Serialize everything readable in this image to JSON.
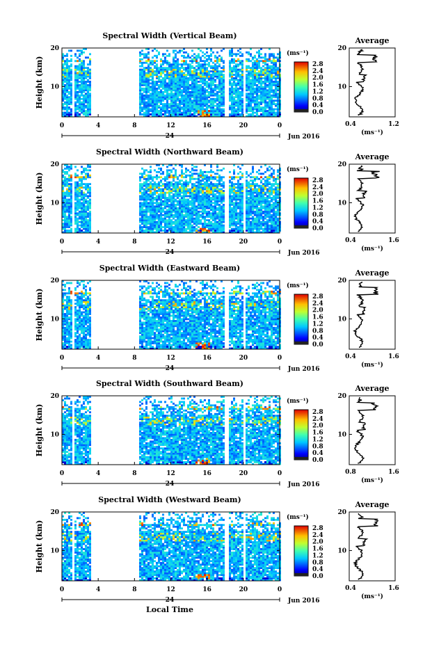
{
  "figure": {
    "ylabel": "Height (km)",
    "date_label": "Jun 2016",
    "day_label": "24",
    "xlabel": "Local Time",
    "unit_label": "(ms⁻¹)",
    "average_title": "Average",
    "average_xlabel": "(ms⁻¹)"
  },
  "chart_data": [
    {
      "type": "heatmap",
      "title": "Spectral Width (Vertical Beam)",
      "x_ticks": [
        "0",
        "4",
        "8",
        "12",
        "16",
        "20",
        "0"
      ],
      "y_ticks": [
        "20",
        "10"
      ],
      "colorbar_ticks": [
        "2.8",
        "2.4",
        "2.0",
        "1.6",
        "1.2",
        "0.8",
        "0.4",
        "0.0"
      ],
      "data_gaps_hours": [
        [
          1.0,
          1.3
        ],
        [
          3.2,
          8.3
        ],
        [
          17.8,
          18.2
        ],
        [
          19.8,
          20.2
        ]
      ],
      "avg_profile": {
        "type": "line",
        "x_ticks": [
          "0.4",
          "1.2"
        ],
        "xlim": [
          0.4,
          1.2
        ],
        "y_ticks": [
          "20",
          "10"
        ]
      }
    },
    {
      "type": "heatmap",
      "title": "Spectral Width (Northward Beam)",
      "x_ticks": [
        "0",
        "4",
        "8",
        "12",
        "16",
        "20",
        "0"
      ],
      "y_ticks": [
        "20",
        "10"
      ],
      "colorbar_ticks": [
        "2.8",
        "2.4",
        "2.0",
        "1.6",
        "1.2",
        "0.8",
        "0.4",
        "0.0"
      ],
      "data_gaps_hours": [
        [
          1.0,
          1.3
        ],
        [
          3.2,
          8.3
        ],
        [
          17.8,
          18.2
        ],
        [
          19.8,
          20.2
        ]
      ],
      "avg_profile": {
        "type": "line",
        "x_ticks": [
          "0.4",
          "1.6"
        ],
        "xlim": [
          0.4,
          1.6
        ],
        "y_ticks": [
          "20",
          "10"
        ]
      }
    },
    {
      "type": "heatmap",
      "title": "Spectral Width (Eastward Beam)",
      "x_ticks": [
        "0",
        "4",
        "8",
        "12",
        "16",
        "20",
        "0"
      ],
      "y_ticks": [
        "20",
        "10"
      ],
      "colorbar_ticks": [
        "2.8",
        "2.4",
        "2.0",
        "1.6",
        "1.2",
        "0.8",
        "0.4",
        "0.0"
      ],
      "data_gaps_hours": [
        [
          1.0,
          1.3
        ],
        [
          3.2,
          8.3
        ],
        [
          17.8,
          18.2
        ],
        [
          19.8,
          20.2
        ]
      ],
      "avg_profile": {
        "type": "line",
        "x_ticks": [
          "0.4",
          "1.6"
        ],
        "xlim": [
          0.4,
          1.6
        ],
        "y_ticks": [
          "20",
          "10"
        ]
      }
    },
    {
      "type": "heatmap",
      "title": "Spectral Width (Southward Beam)",
      "x_ticks": [
        "0",
        "4",
        "8",
        "12",
        "16",
        "20",
        "0"
      ],
      "y_ticks": [
        "20",
        "10"
      ],
      "colorbar_ticks": [
        "2.8",
        "2.4",
        "2.0",
        "1.6",
        "1.2",
        "0.8",
        "0.4",
        "0.0"
      ],
      "data_gaps_hours": [
        [
          1.0,
          1.3
        ],
        [
          3.2,
          8.3
        ],
        [
          17.8,
          18.2
        ],
        [
          19.8,
          20.2
        ]
      ],
      "avg_profile": {
        "type": "line",
        "x_ticks": [
          "0.8",
          "1.6"
        ],
        "xlim": [
          0.8,
          1.6
        ],
        "y_ticks": [
          "20",
          "10"
        ]
      }
    },
    {
      "type": "heatmap",
      "title": "Spectral Width (Westward Beam)",
      "x_ticks": [
        "0",
        "4",
        "8",
        "12",
        "16",
        "20",
        "0"
      ],
      "y_ticks": [
        "20",
        "10"
      ],
      "colorbar_ticks": [
        "2.8",
        "2.4",
        "2.0",
        "1.6",
        "1.2",
        "0.8",
        "0.4",
        "0.0"
      ],
      "data_gaps_hours": [
        [
          1.0,
          1.3
        ],
        [
          3.2,
          8.3
        ],
        [
          17.8,
          18.2
        ],
        [
          19.8,
          20.2
        ]
      ],
      "avg_profile": {
        "type": "line",
        "x_ticks": [
          "0.4",
          "1.6"
        ],
        "xlim": [
          0.4,
          1.6
        ],
        "y_ticks": [
          "20",
          "10"
        ]
      }
    }
  ]
}
